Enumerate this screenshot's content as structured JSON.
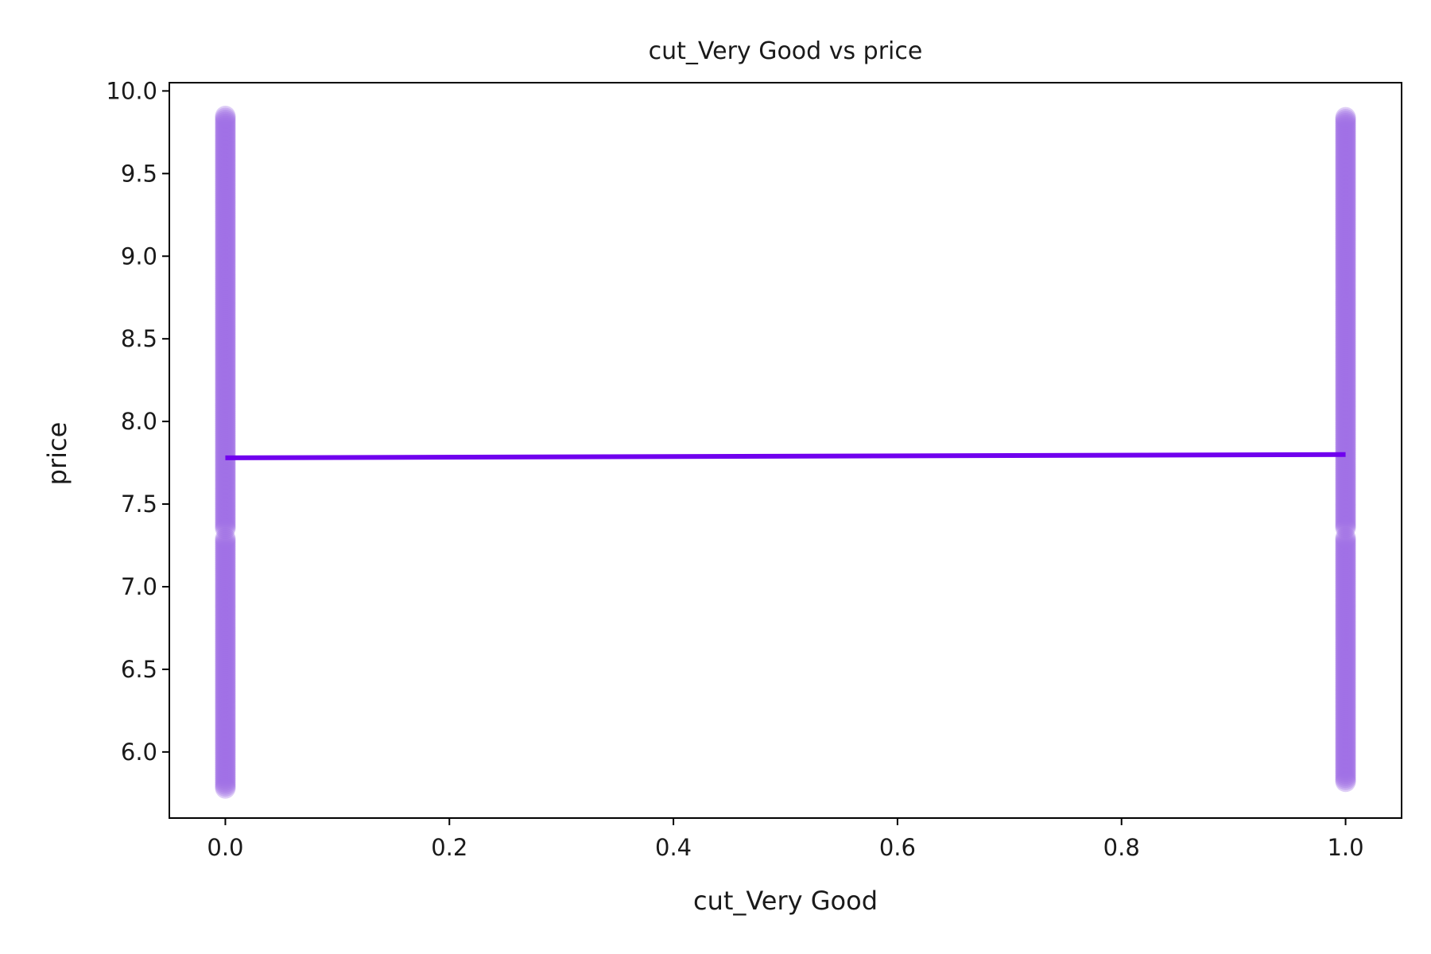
{
  "chart_data": {
    "type": "scatter",
    "title": "cut_Very Good vs price",
    "xlabel": "cut_Very Good",
    "ylabel": "price",
    "xlim": [
      -0.05,
      1.05
    ],
    "ylim": [
      5.6,
      10.05
    ],
    "x_ticks": [
      0.0,
      0.2,
      0.4,
      0.6,
      0.8,
      1.0
    ],
    "x_tick_labels": [
      "0.0",
      "0.2",
      "0.4",
      "0.6",
      "0.8",
      "1.0"
    ],
    "y_ticks": [
      6.0,
      6.5,
      7.0,
      7.5,
      8.0,
      8.5,
      9.0,
      9.5,
      10.0
    ],
    "y_tick_labels": [
      "6.0",
      "6.5",
      "7.0",
      "7.5",
      "8.0",
      "8.5",
      "9.0",
      "9.5",
      "10.0"
    ],
    "grid": false,
    "series": [
      {
        "kind": "points",
        "color": "#a070e6",
        "columns": [
          {
            "x": 0.0,
            "y_min": 5.78,
            "y_max": 9.85,
            "gap": [
              7.3,
              7.35
            ]
          },
          {
            "x": 1.0,
            "y_min": 5.82,
            "y_max": 9.85,
            "gap": [
              7.3,
              7.35
            ]
          }
        ]
      },
      {
        "kind": "regression-line",
        "color": "#7000ee",
        "x": [
          0.0,
          1.0
        ],
        "y": [
          7.78,
          7.8
        ]
      }
    ]
  }
}
